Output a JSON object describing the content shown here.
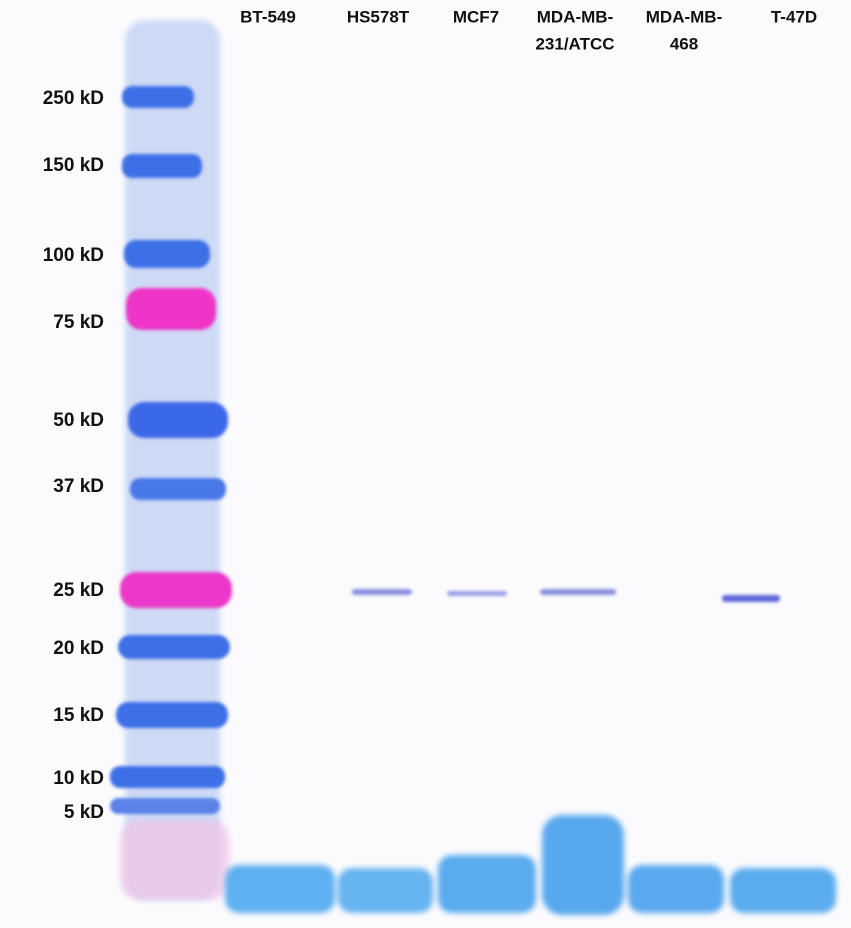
{
  "lanes": [
    {
      "lines": [
        "BT-549"
      ]
    },
    {
      "lines": [
        "HS578T"
      ]
    },
    {
      "lines": [
        "MCF7"
      ]
    },
    {
      "lines": [
        "MDA-MB-",
        "231/ATCC"
      ]
    },
    {
      "lines": [
        "MDA-MB-",
        "468"
      ]
    },
    {
      "lines": [
        "T-47D"
      ]
    }
  ],
  "markers": [
    "250 kD",
    "150 kD",
    "100 kD",
    "75 kD",
    "50 kD",
    "37 kD",
    "25 kD",
    "20 kD",
    "15 kD",
    "10 kD",
    "5 kD"
  ]
}
